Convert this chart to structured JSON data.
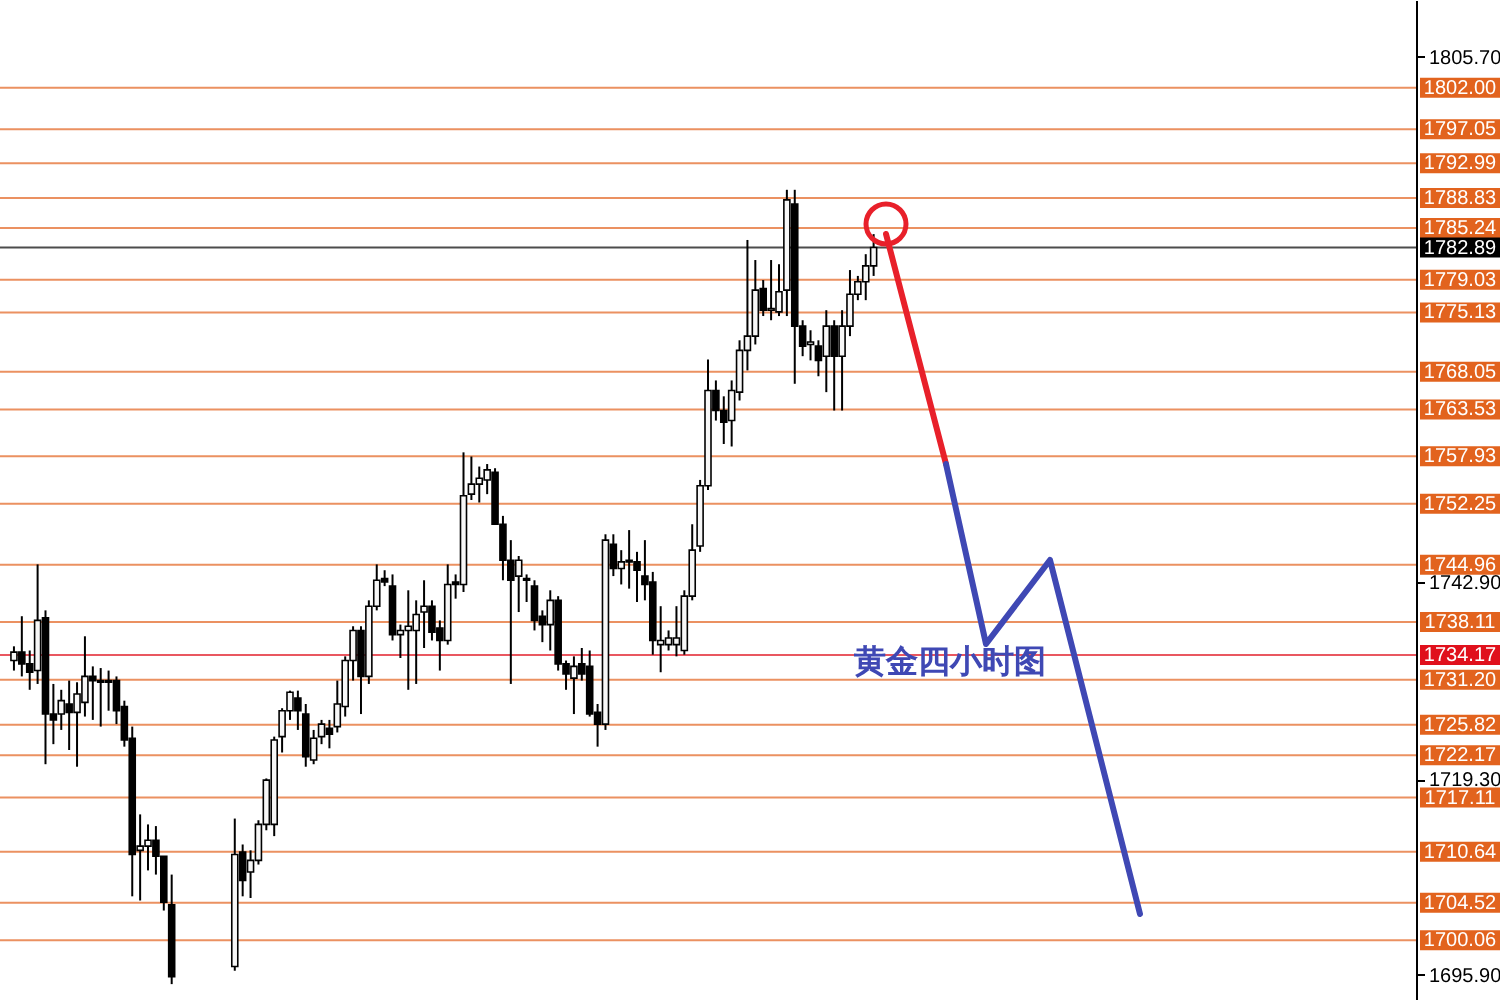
{
  "chart_data": {
    "type": "candlestick",
    "categories": [
      null,
      null,
      null,
      null,
      null,
      null,
      null,
      null,
      null,
      null,
      null,
      null,
      null,
      null,
      null,
      null,
      null,
      null,
      null,
      null,
      null,
      null,
      null,
      null,
      null,
      null,
      null,
      null,
      null,
      null,
      null,
      null,
      null,
      null,
      null,
      null,
      null,
      null,
      null,
      null,
      null,
      null,
      null,
      null,
      null,
      null,
      null,
      null,
      null,
      null,
      null,
      null,
      null,
      null,
      null,
      null,
      null,
      null,
      null,
      null,
      null,
      null,
      null,
      null,
      null,
      null,
      null,
      null,
      null,
      null,
      null,
      null,
      null,
      null,
      null,
      null,
      null,
      null,
      null,
      null,
      null,
      null,
      null,
      null,
      null,
      null,
      null,
      null,
      null,
      null,
      null,
      null,
      null,
      null,
      null,
      null,
      null,
      null,
      null,
      null,
      null,
      null,
      null,
      null,
      null,
      null,
      null,
      null,
      null,
      null,
      null,
      null,
      null,
      null,
      null,
      null,
      null,
      null,
      null,
      null,
      null,
      null,
      null,
      null,
      null,
      null,
      null,
      null,
      null,
      null,
      null,
      null,
      null,
      null,
      null,
      null,
      null,
      null,
      null,
      null,
      null,
      null,
      null,
      null,
      null,
      null,
      null,
      null,
      null,
      null,
      null,
      null,
      null,
      null,
      null,
      null,
      null,
      null,
      null,
      null,
      null,
      null,
      null,
      null,
      null,
      null,
      null,
      null,
      null,
      null,
      null,
      null,
      null,
      null,
      null,
      null,
      null
    ],
    "ohlc": [
      [
        1733.5,
        1735.2,
        1732.3,
        1734.5
      ],
      [
        1734.5,
        1738.8,
        1731.6,
        1733.1
      ],
      [
        1733.1,
        1734.7,
        1730.0,
        1732.1
      ],
      [
        1732.3,
        1745.0,
        1730.7,
        1738.3
      ],
      [
        1738.6,
        1739.5,
        1721.1,
        1727.1
      ],
      [
        1727.1,
        1730.7,
        1723.5,
        1726.4
      ],
      [
        1727.1,
        1730.0,
        1725.2,
        1728.7
      ],
      [
        1728.3,
        1731.1,
        1722.8,
        1727.3
      ],
      [
        1727.3,
        1730.9,
        1720.8,
        1729.5
      ],
      [
        1728.5,
        1736.4,
        1726.8,
        1731.6
      ],
      [
        1731.6,
        1732.8,
        1726.4,
        1731.1
      ],
      [
        1731.1,
        1732.6,
        1725.6,
        1730.9
      ],
      [
        1730.9,
        1732.3,
        1727.5,
        1731.1
      ],
      [
        1731.1,
        1731.6,
        1725.9,
        1727.5
      ],
      [
        1728.0,
        1728.7,
        1723.2,
        1724.0
      ],
      [
        1724.2,
        1725.6,
        1705.3,
        1710.3
      ],
      [
        1710.8,
        1715.1,
        1704.8,
        1711.3
      ],
      [
        1711.3,
        1713.9,
        1708.4,
        1712.0
      ],
      [
        1712.0,
        1713.7,
        1707.9,
        1710.1
      ],
      [
        1710.1,
        1710.1,
        1703.6,
        1704.6
      ],
      [
        1704.3,
        1707.9,
        1694.8,
        1695.7
      ],
      null,
      null,
      null,
      null,
      null,
      null,
      null,
      [
        1696.9,
        1714.6,
        1696.4,
        1710.3
      ],
      [
        1710.6,
        1711.5,
        1705.3,
        1707.2
      ],
      [
        1708.2,
        1710.8,
        1705.1,
        1709.6
      ],
      [
        1709.6,
        1714.4,
        1709.1,
        1713.9
      ],
      [
        1713.9,
        1719.4,
        1713.2,
        1719.2
      ],
      [
        1713.9,
        1724.4,
        1712.5,
        1724.0
      ],
      [
        1724.4,
        1727.8,
        1722.5,
        1727.5
      ],
      [
        1727.5,
        1729.9,
        1726.4,
        1729.7
      ],
      [
        1729.0,
        1729.9,
        1725.2,
        1727.5
      ],
      [
        1727.1,
        1728.3,
        1720.8,
        1722.0
      ],
      [
        1721.6,
        1725.2,
        1721.1,
        1724.2
      ],
      [
        1724.4,
        1726.4,
        1723.5,
        1725.9
      ],
      [
        1725.4,
        1726.4,
        1723.0,
        1724.7
      ],
      [
        1725.6,
        1731.1,
        1724.9,
        1728.3
      ],
      [
        1728.0,
        1734.0,
        1726.8,
        1733.5
      ],
      [
        1733.5,
        1737.6,
        1731.1,
        1737.1
      ],
      [
        1737.1,
        1737.6,
        1727.1,
        1731.6
      ],
      [
        1731.6,
        1740.7,
        1730.7,
        1740.0
      ],
      [
        1740.0,
        1745.0,
        1739.5,
        1743.1
      ],
      [
        1743.3,
        1744.3,
        1742.4,
        1742.9
      ],
      [
        1742.4,
        1743.8,
        1735.9,
        1736.6
      ],
      [
        1736.6,
        1737.8,
        1733.8,
        1737.1
      ],
      [
        1737.1,
        1741.9,
        1730.0,
        1737.6
      ],
      [
        1737.1,
        1740.7,
        1730.7,
        1739.0
      ],
      [
        1739.3,
        1743.1,
        1735.0,
        1740.0
      ],
      [
        1740.0,
        1740.7,
        1735.9,
        1736.9
      ],
      [
        1737.4,
        1738.3,
        1732.3,
        1735.9
      ],
      [
        1735.9,
        1745.0,
        1735.4,
        1742.6
      ],
      [
        1742.9,
        1743.8,
        1740.9,
        1742.6
      ],
      [
        1742.6,
        1758.4,
        1741.7,
        1753.2
      ],
      [
        1753.4,
        1757.9,
        1752.7,
        1754.6
      ],
      [
        1754.6,
        1756.7,
        1752.4,
        1755.3
      ],
      [
        1755.1,
        1757.0,
        1753.4,
        1756.3
      ],
      [
        1756.0,
        1756.5,
        1749.8,
        1749.8
      ],
      [
        1749.8,
        1750.8,
        1743.1,
        1745.5
      ],
      [
        1745.5,
        1747.9,
        1730.7,
        1743.1
      ],
      [
        1743.6,
        1746.0,
        1739.3,
        1745.5
      ],
      [
        1743.1,
        1743.8,
        1740.5,
        1743.3
      ],
      [
        1742.4,
        1743.1,
        1737.1,
        1738.3
      ],
      [
        1738.8,
        1739.5,
        1735.7,
        1737.8
      ],
      [
        1737.8,
        1741.9,
        1734.7,
        1740.7
      ],
      [
        1740.7,
        1741.2,
        1732.3,
        1733.1
      ],
      [
        1733.1,
        1733.5,
        1730.0,
        1731.9
      ],
      [
        1731.4,
        1734.0,
        1727.1,
        1732.8
      ],
      [
        1733.1,
        1735.0,
        1731.1,
        1731.9
      ],
      [
        1732.8,
        1734.7,
        1726.8,
        1727.1
      ],
      [
        1727.3,
        1728.3,
        1723.2,
        1725.9
      ],
      [
        1725.9,
        1748.6,
        1725.2,
        1747.9
      ],
      [
        1747.4,
        1748.6,
        1743.6,
        1744.5
      ],
      [
        1744.5,
        1746.7,
        1742.6,
        1745.3
      ],
      [
        1745.3,
        1749.1,
        1742.1,
        1745.5
      ],
      [
        1745.3,
        1746.5,
        1740.5,
        1744.3
      ],
      [
        1743.6,
        1747.9,
        1740.7,
        1742.6
      ],
      [
        1742.9,
        1744.1,
        1734.2,
        1735.9
      ],
      [
        1735.4,
        1740.0,
        1732.1,
        1735.9
      ],
      [
        1735.4,
        1737.1,
        1734.7,
        1736.2
      ],
      [
        1735.4,
        1740.0,
        1734.0,
        1736.2
      ],
      [
        1734.7,
        1741.9,
        1734.2,
        1741.2
      ],
      [
        1741.2,
        1749.8,
        1740.7,
        1746.7
      ],
      [
        1747.2,
        1755.1,
        1746.5,
        1754.4
      ],
      [
        1754.4,
        1769.5,
        1753.9,
        1765.8
      ],
      [
        1765.8,
        1767.0,
        1762.2,
        1763.4
      ],
      [
        1763.4,
        1765.1,
        1759.4,
        1762.0
      ],
      [
        1762.2,
        1767.0,
        1759.1,
        1765.8
      ],
      [
        1765.6,
        1771.8,
        1764.6,
        1770.6
      ],
      [
        1770.6,
        1783.8,
        1768.2,
        1772.3
      ],
      [
        1772.3,
        1781.4,
        1771.3,
        1777.8
      ],
      [
        1778.0,
        1779.0,
        1774.7,
        1775.4
      ],
      [
        1775.4,
        1781.4,
        1774.2,
        1775.6
      ],
      [
        1775.2,
        1780.9,
        1774.7,
        1777.6
      ],
      [
        1777.8,
        1789.8,
        1774.7,
        1788.6
      ],
      [
        1788.1,
        1789.8,
        1766.6,
        1773.5
      ],
      [
        1773.5,
        1774.2,
        1769.9,
        1771.1
      ],
      [
        1771.3,
        1773.0,
        1769.4,
        1771.6
      ],
      [
        1771.1,
        1771.8,
        1767.5,
        1769.4
      ],
      [
        1769.9,
        1775.4,
        1765.6,
        1773.5
      ],
      [
        1773.5,
        1774.2,
        1763.4,
        1769.9
      ],
      [
        1769.9,
        1775.4,
        1763.4,
        1773.5
      ],
      [
        1773.5,
        1780.2,
        1772.3,
        1777.3
      ],
      [
        1777.3,
        1779.5,
        1776.6,
        1778.8
      ],
      [
        1778.8,
        1782.1,
        1776.6,
        1780.7
      ],
      [
        1780.7,
        1784.5,
        1779.5,
        1782.9
      ],
      null,
      null,
      null,
      null,
      null,
      null,
      null,
      null,
      null,
      null,
      null,
      null,
      null,
      null,
      null,
      null,
      null,
      null,
      null,
      null,
      null,
      null,
      null,
      null,
      null,
      null,
      null,
      null,
      null,
      null,
      null,
      null,
      null,
      null,
      null,
      null,
      null,
      null,
      null,
      null,
      null,
      null,
      null,
      null,
      null,
      null,
      null,
      null,
      null,
      null,
      null,
      null,
      null,
      null,
      null,
      null,
      null,
      null,
      null,
      null,
      null,
      null,
      null,
      null,
      null,
      null,
      null
    ],
    "ylim": [
      1692.9,
      1812.5
    ],
    "yticks": [
      {
        "value": 1805.7,
        "label": "1805.70"
      },
      {
        "value": 1742.9,
        "label": "1742.90"
      },
      {
        "value": 1719.3,
        "label": "1719.30"
      },
      {
        "value": 1695.9,
        "label": "1695.90"
      }
    ],
    "tick_labels": "y",
    "grid": false,
    "annotations": [
      "黄金四小时图"
    ],
    "ref_lines": [
      {
        "axis": "y",
        "value": 1802.0,
        "label": "1802.00",
        "color": "#e2631e"
      },
      {
        "axis": "y",
        "value": 1797.05,
        "label": "1797.05",
        "color": "#e2631e"
      },
      {
        "axis": "y",
        "value": 1792.99,
        "label": "1792.99",
        "color": "#e2631e"
      },
      {
        "axis": "y",
        "value": 1788.83,
        "label": "1788.83",
        "color": "#e2631e"
      },
      {
        "axis": "y",
        "value": 1785.24,
        "label": "1785.24",
        "color": "#e2631e"
      },
      {
        "axis": "y",
        "value": 1782.89,
        "label": "1782.89",
        "color": "#000000"
      },
      {
        "axis": "y",
        "value": 1779.03,
        "label": "1779.03",
        "color": "#e2631e"
      },
      {
        "axis": "y",
        "value": 1775.13,
        "label": "1775.13",
        "color": "#e2631e"
      },
      {
        "axis": "y",
        "value": 1768.05,
        "label": "1768.05",
        "color": "#e2631e"
      },
      {
        "axis": "y",
        "value": 1763.53,
        "label": "1763.53",
        "color": "#e2631e"
      },
      {
        "axis": "y",
        "value": 1757.93,
        "label": "1757.93",
        "color": "#e2631e"
      },
      {
        "axis": "y",
        "value": 1752.25,
        "label": "1752.25",
        "color": "#e2631e"
      },
      {
        "axis": "y",
        "value": 1744.96,
        "label": "1744.96",
        "color": "#e2631e"
      },
      {
        "axis": "y",
        "value": 1738.11,
        "label": "1738.11",
        "color": "#e2631e"
      },
      {
        "axis": "y",
        "value": 1734.17,
        "label": "1734.17",
        "color": "#e0101c"
      },
      {
        "axis": "y",
        "value": 1731.2,
        "label": "1731.20",
        "color": "#e2631e"
      },
      {
        "axis": "y",
        "value": 1725.82,
        "label": "1725.82",
        "color": "#e2631e"
      },
      {
        "axis": "y",
        "value": 1722.17,
        "label": "1722.17",
        "color": "#e2631e"
      },
      {
        "axis": "y",
        "value": 1717.11,
        "label": "1717.11",
        "color": "#e2631e"
      },
      {
        "axis": "y",
        "value": 1710.64,
        "label": "1710.64",
        "color": "#e2631e"
      },
      {
        "axis": "y",
        "value": 1704.52,
        "label": "1704.52",
        "color": "#e2631e"
      },
      {
        "axis": "y",
        "value": 1700.06,
        "label": "1700.06",
        "color": "#e2631e"
      }
    ]
  }
}
